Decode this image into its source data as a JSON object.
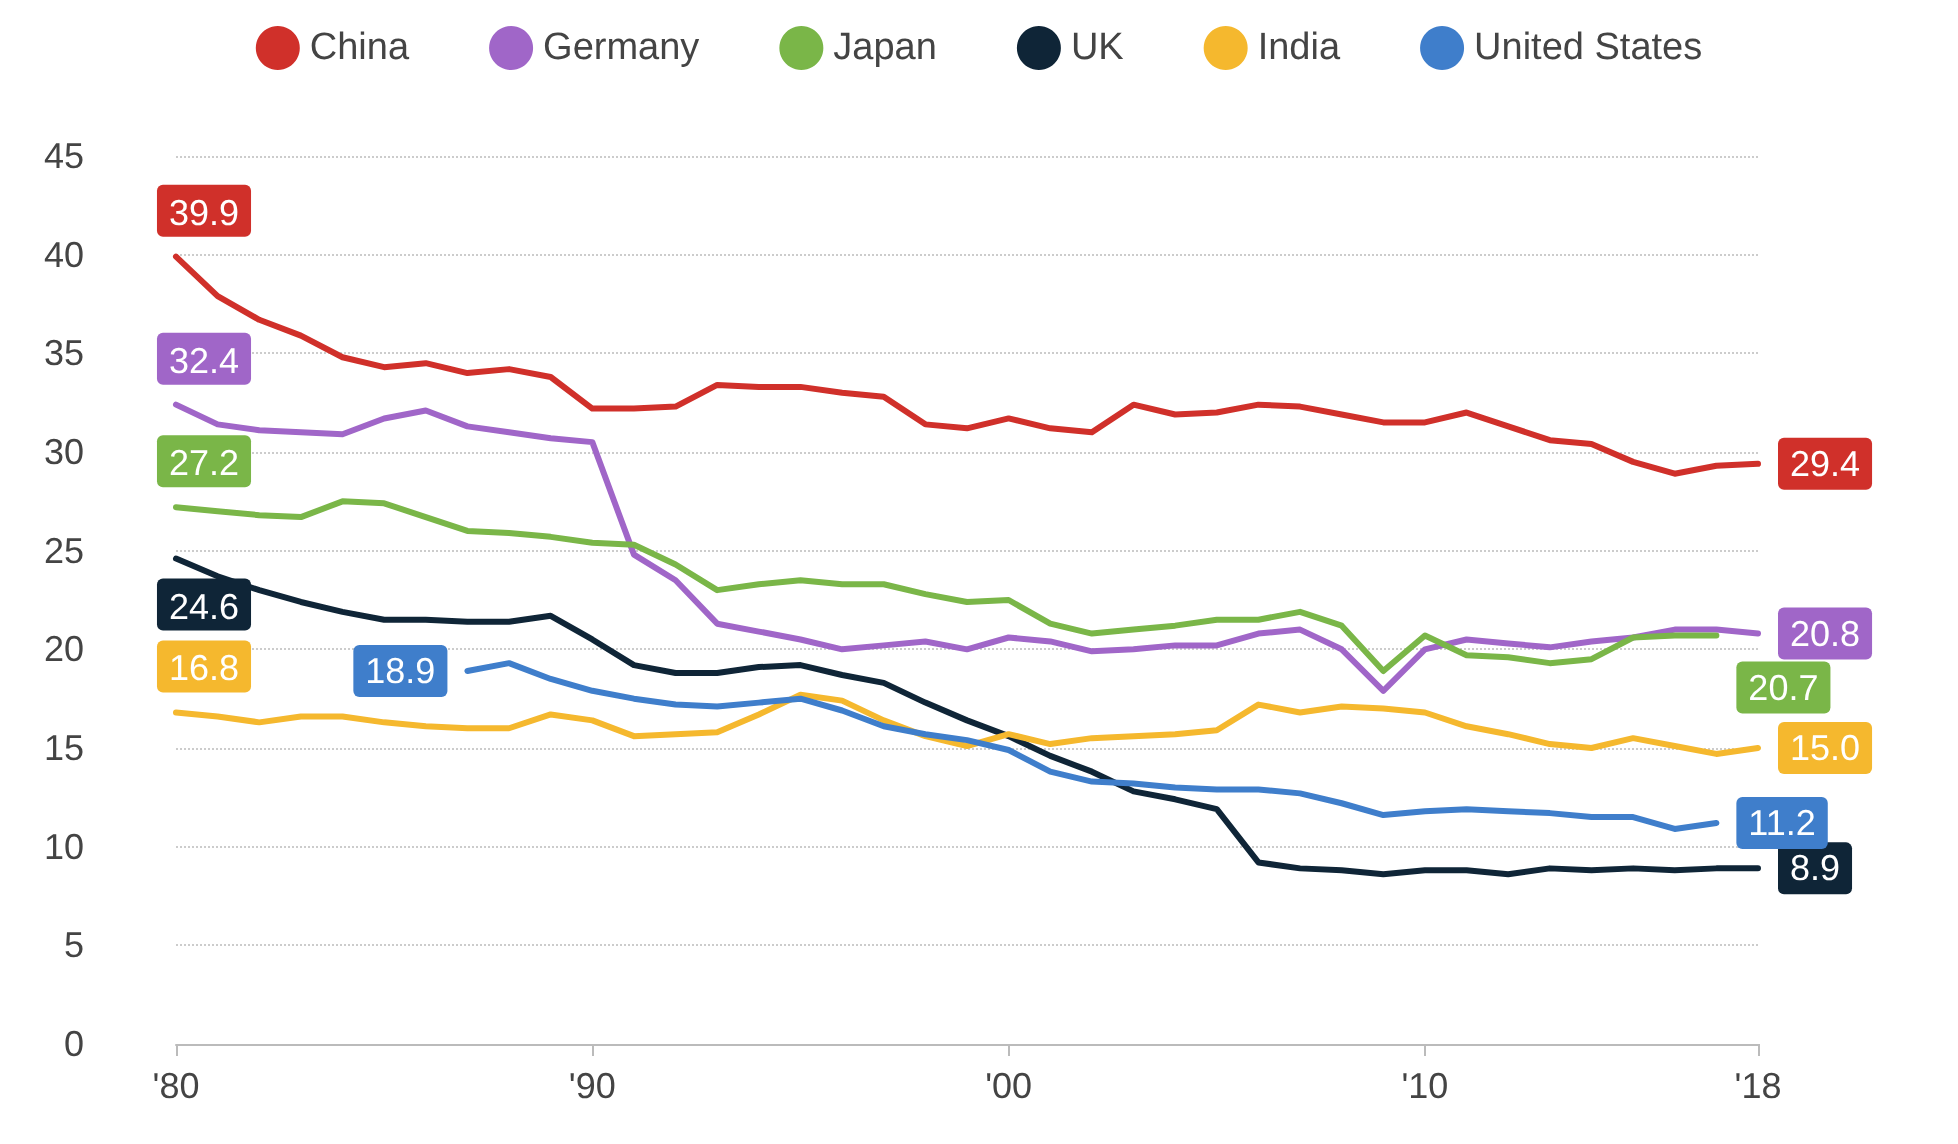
{
  "chart_data": {
    "type": "line",
    "x": [
      1980,
      1981,
      1982,
      1983,
      1984,
      1985,
      1986,
      1987,
      1988,
      1989,
      1990,
      1991,
      1992,
      1993,
      1994,
      1995,
      1996,
      1997,
      1998,
      1999,
      2000,
      2001,
      2002,
      2003,
      2004,
      2005,
      2006,
      2007,
      2008,
      2009,
      2010,
      2011,
      2012,
      2013,
      2014,
      2015,
      2016,
      2017,
      2018
    ],
    "series": [
      {
        "name": "China",
        "color": "#d0302a",
        "values": [
          39.9,
          37.9,
          36.7,
          35.9,
          34.8,
          34.3,
          34.5,
          34.0,
          34.2,
          33.8,
          32.2,
          32.2,
          32.3,
          33.4,
          33.3,
          33.3,
          33.0,
          32.8,
          31.4,
          31.2,
          31.7,
          31.2,
          31.0,
          32.4,
          31.9,
          32.0,
          32.4,
          32.3,
          31.9,
          31.5,
          31.5,
          32.0,
          31.3,
          30.6,
          30.4,
          29.5,
          28.9,
          29.3,
          29.4
        ],
        "value_labels": [
          "39.9",
          null,
          null,
          null,
          null,
          null,
          null,
          null,
          null,
          null,
          null,
          null,
          null,
          null,
          null,
          null,
          null,
          null,
          null,
          null,
          null,
          null,
          null,
          null,
          null,
          null,
          null,
          null,
          null,
          null,
          null,
          null,
          null,
          null,
          null,
          null,
          null,
          null,
          "29.4"
        ]
      },
      {
        "name": "Germany",
        "color": "#a066c8",
        "values": [
          32.4,
          31.4,
          31.1,
          31.0,
          30.9,
          31.7,
          32.1,
          31.3,
          31.0,
          30.7,
          30.5,
          24.8,
          23.5,
          21.3,
          20.9,
          20.5,
          20.0,
          20.2,
          20.4,
          20.0,
          20.6,
          20.4,
          19.9,
          20.0,
          20.2,
          20.2,
          20.8,
          21.0,
          20.0,
          17.9,
          20.0,
          20.5,
          20.3,
          20.1,
          20.4,
          20.6,
          21.0,
          21.0,
          20.8
        ],
        "value_labels": [
          "32.4",
          null,
          null,
          null,
          null,
          null,
          null,
          null,
          null,
          null,
          null,
          null,
          null,
          null,
          null,
          null,
          null,
          null,
          null,
          null,
          null,
          null,
          null,
          null,
          null,
          null,
          null,
          null,
          null,
          null,
          null,
          null,
          null,
          null,
          null,
          null,
          null,
          null,
          "20.8"
        ]
      },
      {
        "name": "Japan",
        "color": "#7ab648",
        "values": [
          27.2,
          27.0,
          26.8,
          26.7,
          27.5,
          27.4,
          26.7,
          26.0,
          25.9,
          25.7,
          25.4,
          25.3,
          24.3,
          23.0,
          23.3,
          23.5,
          23.3,
          23.3,
          22.8,
          22.4,
          22.5,
          21.3,
          20.8,
          21.0,
          21.2,
          21.5,
          21.5,
          21.9,
          21.2,
          18.9,
          20.7,
          19.7,
          19.6,
          19.3,
          19.5,
          20.6,
          20.7,
          20.7,
          null
        ],
        "value_labels": [
          "27.2",
          null,
          null,
          null,
          null,
          null,
          null,
          null,
          null,
          null,
          null,
          null,
          null,
          null,
          null,
          null,
          null,
          null,
          null,
          null,
          null,
          null,
          null,
          null,
          null,
          null,
          null,
          null,
          null,
          null,
          null,
          null,
          null,
          null,
          null,
          null,
          null,
          "20.7",
          null
        ]
      },
      {
        "name": "UK",
        "color": "#0f2537",
        "values": [
          24.6,
          23.7,
          23.0,
          22.4,
          21.9,
          21.5,
          21.5,
          21.4,
          21.4,
          21.7,
          20.5,
          19.2,
          18.8,
          18.8,
          19.1,
          19.2,
          18.7,
          18.3,
          17.3,
          16.4,
          15.6,
          14.6,
          13.8,
          12.8,
          12.4,
          11.9,
          9.2,
          8.9,
          8.8,
          8.6,
          8.8,
          8.8,
          8.6,
          8.9,
          8.8,
          8.9,
          8.8,
          8.9,
          8.9
        ],
        "value_labels": [
          "24.6",
          null,
          null,
          null,
          null,
          null,
          null,
          null,
          null,
          null,
          null,
          null,
          null,
          null,
          null,
          null,
          null,
          null,
          null,
          null,
          null,
          null,
          null,
          null,
          null,
          null,
          null,
          null,
          null,
          null,
          null,
          null,
          null,
          null,
          null,
          null,
          null,
          null,
          "8.9"
        ]
      },
      {
        "name": "India",
        "color": "#f5b82e",
        "values": [
          16.8,
          16.6,
          16.3,
          16.6,
          16.6,
          16.3,
          16.1,
          16.0,
          16.0,
          16.7,
          16.4,
          15.6,
          15.7,
          15.8,
          16.7,
          17.7,
          17.4,
          16.4,
          15.6,
          15.1,
          15.7,
          15.2,
          15.5,
          15.6,
          15.7,
          15.9,
          17.2,
          16.8,
          17.1,
          17.0,
          16.8,
          16.1,
          15.7,
          15.2,
          15.0,
          15.5,
          15.1,
          14.7,
          15.0
        ],
        "value_labels": [
          "16.8",
          null,
          null,
          null,
          null,
          null,
          null,
          null,
          null,
          null,
          null,
          null,
          null,
          null,
          null,
          null,
          null,
          null,
          null,
          null,
          null,
          null,
          null,
          null,
          null,
          null,
          null,
          null,
          null,
          null,
          null,
          null,
          null,
          null,
          null,
          null,
          null,
          null,
          "15.0"
        ]
      },
      {
        "name": "United States",
        "color": "#3f7ecb",
        "values": [
          null,
          null,
          null,
          null,
          null,
          null,
          null,
          18.9,
          19.3,
          18.5,
          17.9,
          17.5,
          17.2,
          17.1,
          17.3,
          17.5,
          16.9,
          16.1,
          15.7,
          15.4,
          14.9,
          13.8,
          13.3,
          13.2,
          13.0,
          12.9,
          12.9,
          12.7,
          12.2,
          11.6,
          11.8,
          11.9,
          11.8,
          11.7,
          11.5,
          11.5,
          10.9,
          11.2,
          null
        ],
        "value_labels": [
          null,
          null,
          null,
          null,
          null,
          null,
          null,
          "18.9",
          null,
          null,
          null,
          null,
          null,
          null,
          null,
          null,
          null,
          null,
          null,
          null,
          null,
          null,
          null,
          null,
          null,
          null,
          null,
          null,
          null,
          null,
          null,
          null,
          null,
          null,
          null,
          null,
          null,
          "11.2",
          null
        ]
      }
    ],
    "xlim": [
      1980,
      2018
    ],
    "xticks": [
      {
        "value": 1980,
        "label": "'80"
      },
      {
        "value": 1990,
        "label": "'90"
      },
      {
        "value": 2000,
        "label": "'00"
      },
      {
        "value": 2010,
        "label": "'10"
      },
      {
        "value": 2018,
        "label": "'18"
      }
    ],
    "ylim": [
      0,
      45
    ],
    "yticks": [
      0,
      5,
      10,
      15,
      20,
      25,
      30,
      35,
      40,
      45
    ],
    "grid": "y",
    "legend": "top",
    "marker": "none",
    "line_style": "solid"
  }
}
